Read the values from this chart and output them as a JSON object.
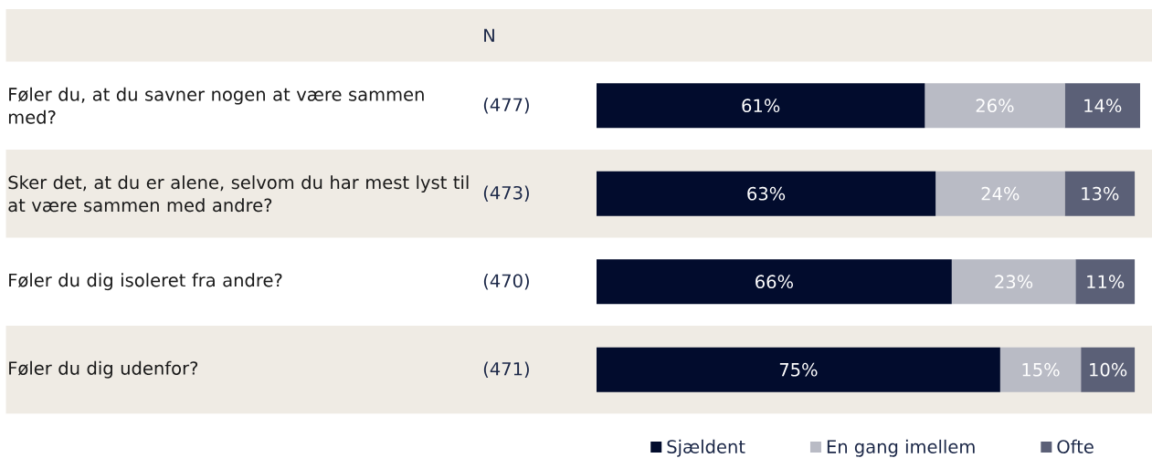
{
  "chart_data": {
    "type": "bar",
    "orientation": "horizontal",
    "stacked": true,
    "categories": [
      "Føler du, at du savner nogen at være sammen med?",
      "Sker det, at du er alene, selvom du har mest lyst til at være sammen med andre?",
      "Føler du dig isoleret fra andre?",
      "Føler du dig udenfor?"
    ],
    "series": [
      {
        "name": "Sjældent",
        "color": "#020c2d",
        "values": [
          61,
          63,
          66,
          75
        ],
        "value_labels": [
          "61%",
          "63%",
          "66%",
          "75%"
        ]
      },
      {
        "name": "En gang imellem",
        "color": "#b9bbc5",
        "values": [
          26,
          24,
          23,
          15
        ],
        "value_labels": [
          "26%",
          "24%",
          "23%",
          "15%"
        ]
      },
      {
        "name": "Ofte",
        "color": "#5b6077",
        "values": [
          14,
          13,
          11,
          10
        ],
        "value_labels": [
          "14%",
          "13%",
          "11%",
          "10%"
        ]
      }
    ],
    "annotations": [
      "N",
      "(477)",
      "(473)",
      "(470)",
      "(471)"
    ],
    "legend": "bottom",
    "tick_labels": "y"
  }
}
